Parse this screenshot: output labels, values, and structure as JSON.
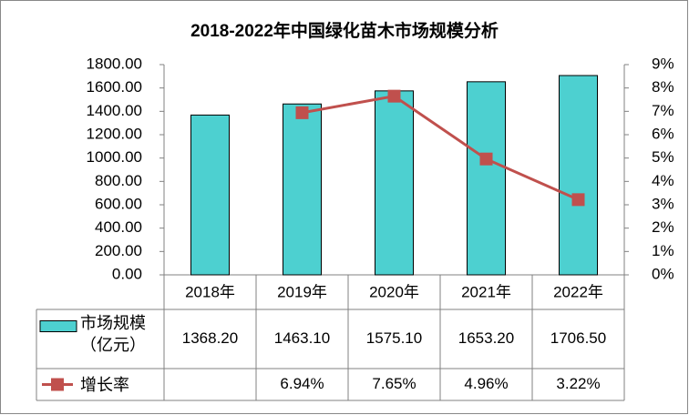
{
  "chart_data": {
    "type": "bar",
    "title": "2018-2022年中国绿化苗木市场规模分析",
    "categories": [
      "2018年",
      "2019年",
      "2020年",
      "2021年",
      "2022年"
    ],
    "series": [
      {
        "name": "市场规模（亿元）",
        "type": "bar",
        "color": "#4dd0d0",
        "values": [
          1368.2,
          1463.1,
          1575.1,
          1653.2,
          1706.5
        ],
        "value_labels": [
          "1368.20",
          "1463.10",
          "1575.10",
          "1653.20",
          "1706.50"
        ]
      },
      {
        "name": "增长率",
        "type": "line",
        "axis": "y2",
        "color": "#c0504d",
        "values": [
          null,
          6.94,
          7.65,
          4.96,
          3.22
        ],
        "value_labels": [
          null,
          "6.94%",
          "7.65%",
          "4.96%",
          "3.22%"
        ]
      }
    ],
    "ylim": [
      0,
      1800
    ],
    "yticks": [
      {
        "value": 0,
        "label": "0.00"
      },
      {
        "value": 200,
        "label": "200.00"
      },
      {
        "value": 400,
        "label": "400.00"
      },
      {
        "value": 600,
        "label": "600.00"
      },
      {
        "value": 800,
        "label": "800.00"
      },
      {
        "value": 1000,
        "label": "1000.00"
      },
      {
        "value": 1200,
        "label": "1200.00"
      },
      {
        "value": 1400,
        "label": "1400.00"
      },
      {
        "value": 1600,
        "label": "1600.00"
      },
      {
        "value": 1800,
        "label": "1800.00"
      }
    ],
    "y2lim": [
      0,
      9
    ],
    "y2ticks": [
      {
        "value": 0,
        "label": "0%"
      },
      {
        "value": 1,
        "label": "1%"
      },
      {
        "value": 2,
        "label": "2%"
      },
      {
        "value": 3,
        "label": "3%"
      },
      {
        "value": 4,
        "label": "4%"
      },
      {
        "value": 5,
        "label": "5%"
      },
      {
        "value": 6,
        "label": "6%"
      },
      {
        "value": 7,
        "label": "7%"
      },
      {
        "value": 8,
        "label": "8%"
      },
      {
        "value": 9,
        "label": "9%"
      }
    ],
    "grid": false,
    "data_table": true
  }
}
